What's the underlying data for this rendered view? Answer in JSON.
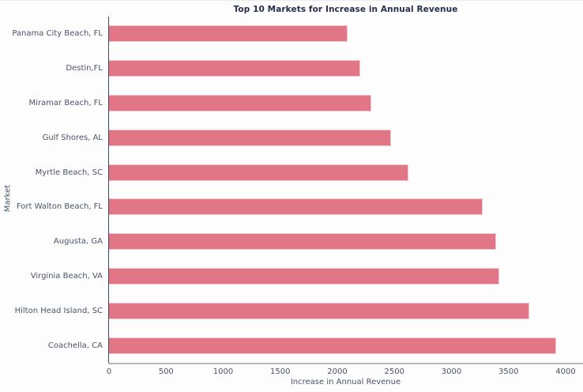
{
  "page": {
    "background_color": "#ffffff"
  },
  "chart_data": {
    "type": "bar",
    "orientation": "horizontal",
    "title": "Top 10 Markets for Increase in Annual Revenue",
    "xlabel": "Increase in Annual Revenue",
    "ylabel": "Market",
    "categories": [
      "Panama City Beach, FL",
      "Destin,FL",
      "Miramar Beach, FL",
      "Gulf Shores, AL",
      "Myrtle Beach, SC",
      "Fort Walton Beach, FL",
      "Augusta, GA",
      "Virginia Beach, VA",
      "Hilton Head Island, SC",
      "Coachella, CA"
    ],
    "values": [
      2090,
      2200,
      2300,
      2470,
      2620,
      3270,
      3390,
      3420,
      3680,
      3920
    ],
    "xticks": [
      0,
      500,
      1000,
      1500,
      2000,
      2500,
      3000,
      3500,
      4000
    ],
    "xlim": [
      0,
      4145
    ],
    "grid": false,
    "legend_position": "none",
    "bar_color": "#e07686",
    "bar_edge_color": "#f1c6cd",
    "title_color": "#262f4b",
    "label_color": "#4a5368",
    "y_axis_line_color": "#3e4760",
    "x_axis_line_color": "#b4b7bd"
  }
}
